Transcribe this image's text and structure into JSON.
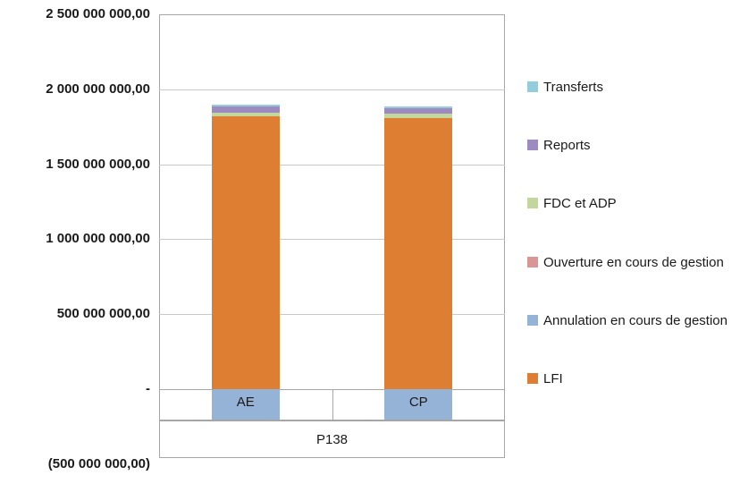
{
  "chart_data": {
    "type": "bar",
    "stacked": true,
    "grid": true,
    "legend_position": "right",
    "categories": [
      "AE",
      "CP"
    ],
    "group_label": "P138",
    "y_axis": {
      "min": -500000000,
      "max": 2500000000,
      "step": 500000000,
      "tick_labels": [
        "2 500 000 000,00",
        "2 000 000 000,00",
        "1 500 000 000,00",
        "1 000 000 000,00",
        "500 000 000,00",
        "-",
        "(500 000 000,00)"
      ]
    },
    "series": [
      {
        "name": "LFI",
        "color": "#dd7e33",
        "values": [
          1820000000,
          1810000000
        ]
      },
      {
        "name": "Annulation en cours de gestion",
        "color": "#95b3d7",
        "values": [
          -200000000,
          -200000000
        ]
      },
      {
        "name": "Ouverture en cours de gestion",
        "color": "#d99694",
        "values": [
          0,
          0
        ]
      },
      {
        "name": "FDC et ADP",
        "color": "#c3d69b",
        "values": [
          25000000,
          25000000
        ]
      },
      {
        "name": "Reports",
        "color": "#9c8ac0",
        "values": [
          40000000,
          40000000
        ]
      },
      {
        "name": "Transferts",
        "color": "#92cddc",
        "values": [
          12000000,
          12000000
        ]
      }
    ],
    "legend_order": [
      "Transferts",
      "Reports",
      "FDC et ADP",
      "Ouverture en cours de gestion",
      "Annulation en cours de gestion",
      "LFI"
    ]
  }
}
